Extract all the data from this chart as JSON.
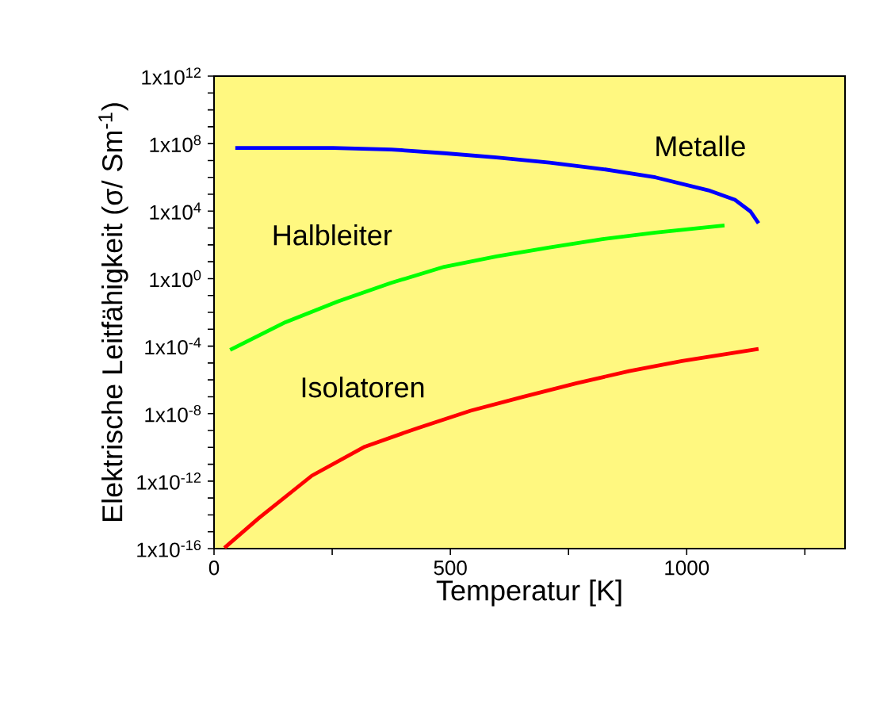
{
  "chart_data": {
    "type": "line",
    "xlabel": "Temperatur [K]",
    "ylabel": "Elektrische Leitfähigkeit (σ/ Sm$^{-1}$)",
    "log": "y",
    "xlim": [
      0,
      1335
    ],
    "ylim": [
      1e-16,
      1000000000000.0
    ],
    "xticks": [
      0,
      {
        "value": 250,
        "label": null
      },
      500,
      {
        "value": 750,
        "label": null
      },
      1000,
      {
        "value": 1250,
        "label": null
      }
    ],
    "yticks": [
      {
        "value": 1e-16,
        "label": "1x10$^{-16}$"
      },
      {
        "value": 1e-15,
        "label": null
      },
      {
        "value": 1e-14,
        "label": null
      },
      {
        "value": 1e-13,
        "label": null
      },
      {
        "value": 1e-12,
        "label": "1x10$^{-12}$"
      },
      {
        "value": 1e-11,
        "label": null
      },
      {
        "value": 1e-10,
        "label": null
      },
      {
        "value": 1e-09,
        "label": null
      },
      {
        "value": 1e-08,
        "label": "1x10$^{-8}$"
      },
      {
        "value": 1e-07,
        "label": null
      },
      {
        "value": 1e-06,
        "label": null
      },
      {
        "value": 1e-05,
        "label": null
      },
      {
        "value": 0.0001,
        "label": "1x10$^{-4}$"
      },
      {
        "value": 0.001,
        "label": null
      },
      {
        "value": 0.01,
        "label": null
      },
      {
        "value": 0.1,
        "label": null
      },
      {
        "value": 1,
        "label": "1x10$^{0}$"
      },
      {
        "value": 10,
        "label": null
      },
      {
        "value": 100,
        "label": null
      },
      {
        "value": 1000,
        "label": null
      },
      {
        "value": 10000.0,
        "label": "1x10$^{4}$"
      },
      {
        "value": 100000.0,
        "label": null
      },
      {
        "value": 1000000.0,
        "label": null
      },
      {
        "value": 10000000.0,
        "label": null
      },
      {
        "value": 100000000.0,
        "label": "1x10$^{8}$"
      },
      {
        "value": 1000000000.0,
        "label": null
      },
      {
        "value": 10000000000.0,
        "label": null
      },
      {
        "value": 100000000000.0,
        "label": null
      },
      {
        "value": 1000000000000.0,
        "label": "1x10$^{12}$"
      }
    ],
    "grid": false,
    "legend": false,
    "marker": "none",
    "line_style": "solid",
    "series": [
      {
        "name": "Metalle",
        "color": "#0000ff",
        "x": [
          45,
          252,
          375,
          487,
          598,
          710,
          822,
          934,
          1046,
          1102,
          1135,
          1152
        ],
        "values": [
          55000000.0,
          55000000.0,
          45000000.0,
          27000000.0,
          15000000.0,
          7400000.0,
          3100000.0,
          1000000.0,
          170000.0,
          47000.0,
          9500.0,
          1900.0
        ]
      },
      {
        "name": "Halbleiter",
        "color": "#00ff00",
        "x": [
          34,
          151,
          263,
          375,
          487,
          598,
          710,
          822,
          934,
          1080
        ],
        "values": [
          5.9e-05,
          0.0026,
          0.046,
          0.56,
          5.0,
          21,
          71,
          220,
          540,
          1400
        ]
      },
      {
        "name": "Isolatoren",
        "color": "#ff0000",
        "x": [
          22,
          95,
          207,
          319,
          431,
          543,
          655,
          767,
          878,
          990,
          1152
        ],
        "values": [
          1.1e-16,
          6.5e-15,
          2.1e-12,
          1.1e-10,
          1.4e-09,
          1.5e-08,
          1e-07,
          6.3e-07,
          3.3e-06,
          1.3e-05,
          6.9e-05
        ]
      }
    ]
  }
}
